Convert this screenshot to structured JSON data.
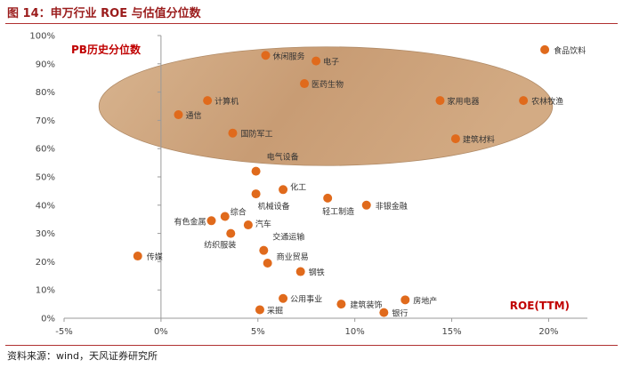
{
  "figure_title": "图 14：申万行业 ROE 与估值分位数",
  "source": "资料来源：wind，天风证券研究所",
  "chart_data": {
    "type": "scatter",
    "title": "",
    "xlabel": "ROE(TTM)",
    "ylabel": "PB历史分位数",
    "xlim": [
      -0.05,
      0.22
    ],
    "ylim": [
      0,
      1.0
    ],
    "x_ticks": [
      -0.05,
      0,
      0.05,
      0.1,
      0.15,
      0.2
    ],
    "x_tick_labels": [
      "-5%",
      "0%",
      "5%",
      "10%",
      "15%",
      "20%"
    ],
    "y_ticks": [
      0,
      0.1,
      0.2,
      0.3,
      0.4,
      0.5,
      0.6,
      0.7,
      0.8,
      0.9,
      1.0
    ],
    "y_tick_labels": [
      "0%",
      "10%",
      "20%",
      "30%",
      "40%",
      "50%",
      "60%",
      "70%",
      "80%",
      "90%",
      "100%"
    ],
    "grid": false,
    "marker_color": "#e06a1c",
    "highlight_fill": "#c9a07a",
    "highlight_region": {
      "center": [
        0.085,
        0.75
      ],
      "radii": [
        0.117,
        0.21
      ]
    },
    "points": [
      {
        "name": "食品饮料",
        "x": 0.198,
        "y": 0.95
      },
      {
        "name": "休闲服务",
        "x": 0.054,
        "y": 0.93
      },
      {
        "name": "电子",
        "x": 0.08,
        "y": 0.91
      },
      {
        "name": "医药生物",
        "x": 0.074,
        "y": 0.83
      },
      {
        "name": "计算机",
        "x": 0.024,
        "y": 0.77
      },
      {
        "name": "家用电器",
        "x": 0.144,
        "y": 0.77
      },
      {
        "name": "农林牧渔",
        "x": 0.187,
        "y": 0.77
      },
      {
        "name": "通信",
        "x": 0.009,
        "y": 0.72
      },
      {
        "name": "国防军工",
        "x": 0.037,
        "y": 0.655
      },
      {
        "name": "建筑材料",
        "x": 0.152,
        "y": 0.635
      },
      {
        "name": "电气设备",
        "x": 0.049,
        "y": 0.52
      },
      {
        "name": "化工",
        "x": 0.063,
        "y": 0.455
      },
      {
        "name": "机械设备",
        "x": 0.049,
        "y": 0.44
      },
      {
        "name": "轻工制造",
        "x": 0.086,
        "y": 0.425
      },
      {
        "name": "非银金融",
        "x": 0.106,
        "y": 0.4
      },
      {
        "name": "综合",
        "x": 0.033,
        "y": 0.36
      },
      {
        "name": "有色金属",
        "x": 0.026,
        "y": 0.345
      },
      {
        "name": "汽车",
        "x": 0.045,
        "y": 0.33
      },
      {
        "name": "纺织服装",
        "x": 0.036,
        "y": 0.3
      },
      {
        "name": "交通运输",
        "x": 0.053,
        "y": 0.24
      },
      {
        "name": "传媒",
        "x": -0.012,
        "y": 0.22
      },
      {
        "name": "商业贸易",
        "x": 0.055,
        "y": 0.195
      },
      {
        "name": "钢铁",
        "x": 0.072,
        "y": 0.165
      },
      {
        "name": "公用事业",
        "x": 0.063,
        "y": 0.07
      },
      {
        "name": "房地产",
        "x": 0.126,
        "y": 0.065
      },
      {
        "name": "建筑装饰",
        "x": 0.093,
        "y": 0.05
      },
      {
        "name": "采掘",
        "x": 0.051,
        "y": 0.03
      },
      {
        "name": "银行",
        "x": 0.115,
        "y": 0.02
      }
    ]
  }
}
